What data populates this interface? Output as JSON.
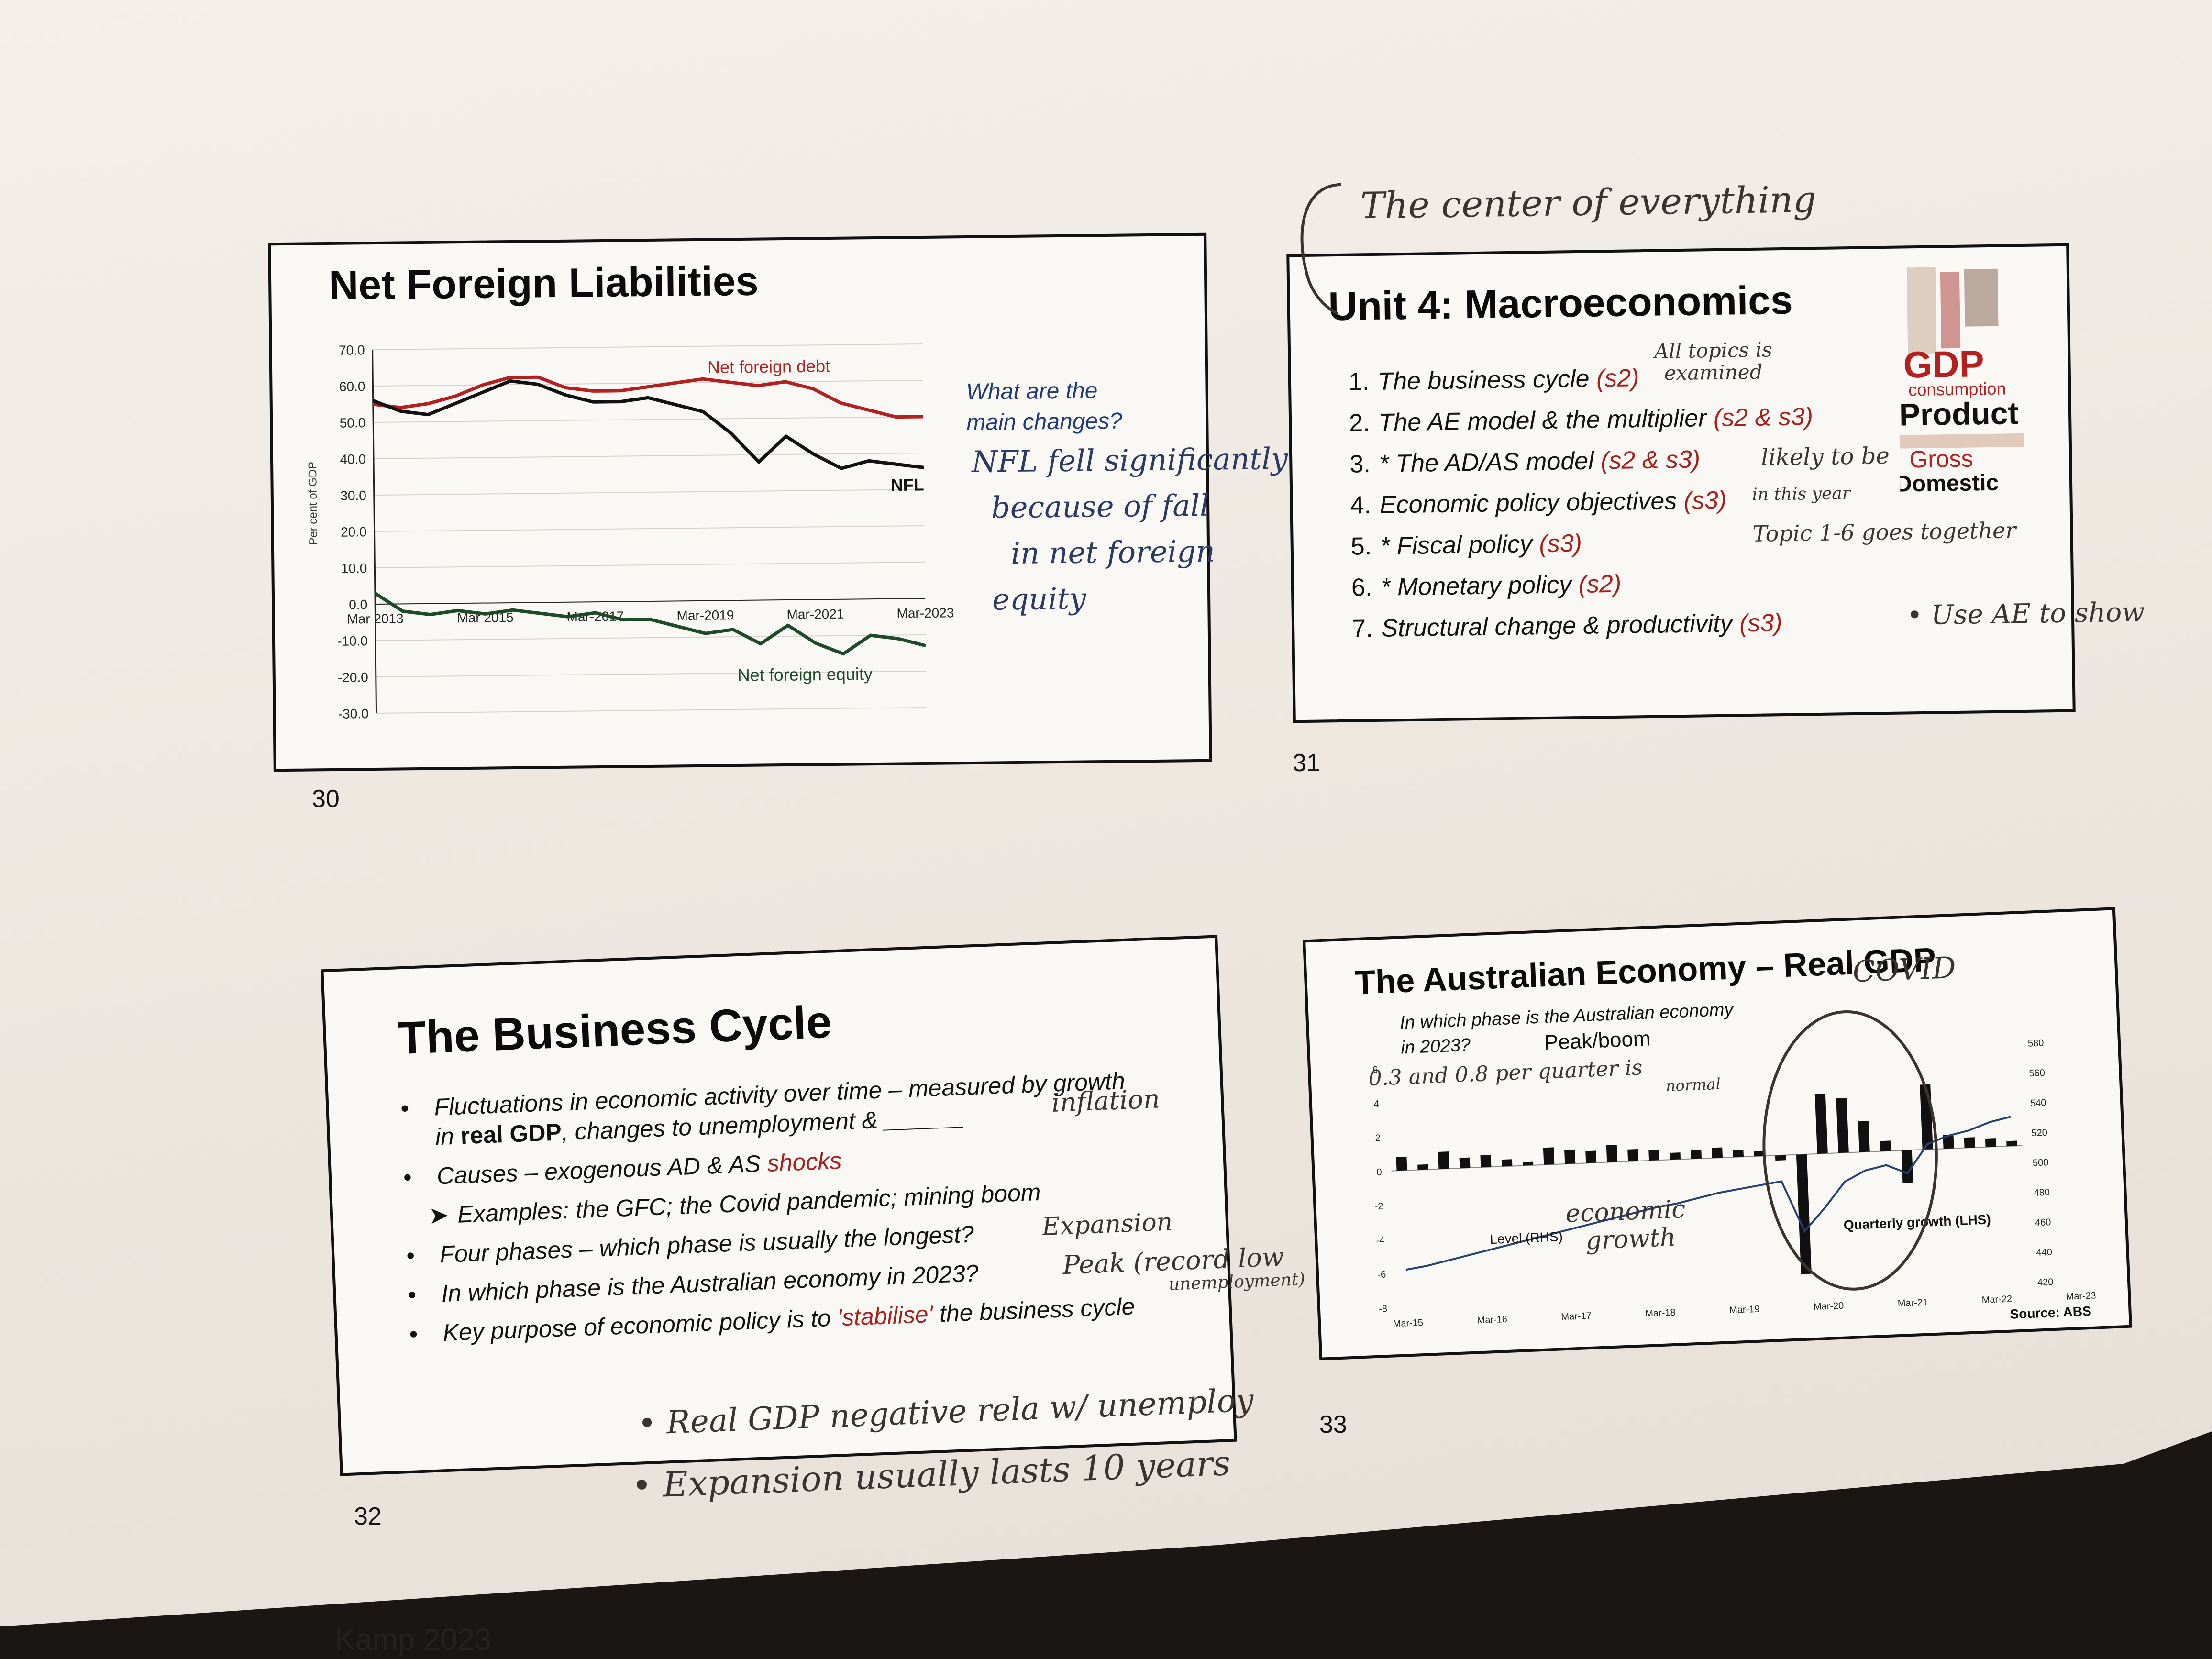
{
  "page_footer": "Kamp 2023",
  "slide30": {
    "number": "30",
    "title": "Net Foreign Liabilities",
    "question": [
      "What are the",
      "main changes?"
    ],
    "handwriting": [
      "NFL fell significantly",
      "because of fall",
      "in net foreign",
      "equity"
    ]
  },
  "slide31": {
    "number": "31",
    "title": "Unit 4: Macroeconomics",
    "items": [
      {
        "n": "1.",
        "text": "The business cycle",
        "tag": "(s2)"
      },
      {
        "n": "2.",
        "text": "The AE model & the multiplier",
        "tag": "(s2 & s3)"
      },
      {
        "n": "3.",
        "text": "* The AD/AS model",
        "tag": "(s2 & s3)"
      },
      {
        "n": "4.",
        "text": "Economic policy objectives",
        "tag": "(s3)"
      },
      {
        "n": "5.",
        "text": "* Fiscal policy",
        "tag": "(s3)"
      },
      {
        "n": "6.",
        "text": "* Monetary policy",
        "tag": "(s2)"
      },
      {
        "n": "7.",
        "text": "Structural change & productivity",
        "tag": "(s3)"
      }
    ],
    "wordcloud": [
      "GDP",
      "consumption",
      "Product",
      "Gross",
      "Domestic"
    ],
    "handwriting": {
      "top": "The center of everything",
      "topics1": "All topics is",
      "topics2": "examined",
      "likely": "likely to be",
      "year": "in this year",
      "together": "Topic 1-6 goes together",
      "ae": "• Use AE to show"
    }
  },
  "slide32": {
    "number": "32",
    "title": "The Business Cycle",
    "bullets": [
      {
        "pre": "Fluctuations in economic activity over time – measured by growth in ",
        "bold": "real GDP",
        "post": ", changes to unemployment & ______",
        "red": ""
      },
      {
        "pre": "Causes – exogenous AD & AS ",
        "bold": "",
        "post": "",
        "red": "shocks"
      },
      {
        "pre": "Examples: the GFC; the Covid pandemic; mining boom",
        "bold": "",
        "post": "",
        "red": "",
        "sub": true
      },
      {
        "pre": "Four phases – which phase is usually the longest?",
        "bold": "",
        "post": "",
        "red": ""
      },
      {
        "pre": "In which phase is the Australian economy in 2023?",
        "bold": "",
        "post": "",
        "red": ""
      },
      {
        "pre": "Key purpose of economic policy is to ",
        "bold": "",
        "post": " the business cycle",
        "red": "'stabilise'"
      }
    ],
    "handwriting": {
      "inflation": "inflation",
      "expansion": "Expansion",
      "peak": "Peak (record low",
      "unemp": "unemployment)",
      "note1": "• Real GDP negative rela w/ unemploy",
      "note2": "• Expansion usually lasts 10 years"
    }
  },
  "slide33": {
    "number": "33",
    "title": "The Australian Economy – Real GDP",
    "question": [
      "In which phase is the Australian economy",
      "in 2023?"
    ],
    "answer": "Peak/boom",
    "source": "Source: ABS",
    "label_level": "Level (RHS)",
    "label_growth": "Quarterly growth (LHS)",
    "handwriting": {
      "covid": "COVID",
      "normal1": "0.3 and 0.8 per quarter is",
      "normal2": "normal",
      "econ1": "economic",
      "econ2": "growth"
    }
  },
  "chart_data": [
    {
      "type": "line",
      "title": "",
      "ylabel": "Per cent of GDP",
      "ylim": [
        -30,
        70
      ],
      "yticks": [
        "70.0",
        "60.0",
        "50.0",
        "40.0",
        "30.0",
        "20.0",
        "10.0",
        "0.0",
        "-10.0",
        "-20.0",
        "-30.0"
      ],
      "x_ticks": [
        "Mar 2013",
        "Mar 2015",
        "Mar-2017",
        "Mar-2019",
        "Mar-2021",
        "Mar-2023"
      ],
      "x": [
        2013,
        2013.5,
        2014,
        2014.5,
        2015,
        2015.5,
        2016,
        2016.5,
        2017,
        2017.5,
        2018,
        2018.5,
        2019,
        2019.5,
        2020,
        2020.5,
        2021,
        2021.5,
        2022,
        2022.5,
        2023
      ],
      "series": [
        {
          "name": "Net foreign debt",
          "color": "#b3201f",
          "values": [
            55,
            54,
            55,
            57,
            60,
            62,
            62,
            59,
            58,
            58,
            59,
            60,
            61,
            60,
            59,
            60,
            58,
            54,
            52,
            50,
            50
          ]
        },
        {
          "name": "NFL",
          "color": "#111111",
          "values": [
            56,
            53,
            52,
            55,
            58,
            61,
            60,
            57,
            55,
            55,
            56,
            54,
            52,
            46,
            38,
            45,
            40,
            36,
            38,
            37,
            36
          ]
        },
        {
          "name": "Net foreign equity",
          "color": "#1f4a2a",
          "values": [
            3,
            -2,
            -3,
            -2,
            -3,
            -2,
            -3,
            -4,
            -3,
            -5,
            -5,
            -7,
            -9,
            -8,
            -12,
            -7,
            -12,
            -15,
            -10,
            -11,
            -13
          ]
        }
      ]
    },
    {
      "type": "bar",
      "title": "",
      "x_ticks": [
        "Mar-15",
        "Mar-16",
        "Mar-17",
        "Mar-18",
        "Mar-19",
        "Mar-20",
        "Mar-21",
        "Mar-22",
        "Mar-23"
      ],
      "ylim_left": [
        -8,
        6
      ],
      "yticks_left": [
        "6",
        "4",
        "2",
        "0",
        "-2",
        "-4",
        "-6",
        "-8"
      ],
      "ylim_right": [
        420,
        580
      ],
      "yticks_right": [
        "580",
        "560",
        "540",
        "520",
        "500",
        "480",
        "460",
        "440",
        "420"
      ],
      "series": [
        {
          "name": "Quarterly growth (LHS)",
          "color": "#111111",
          "values": [
            0.8,
            0.3,
            1.0,
            0.6,
            0.7,
            0.4,
            0.2,
            1.0,
            0.8,
            0.7,
            1.0,
            0.7,
            0.6,
            0.4,
            0.5,
            0.6,
            0.4,
            0.3,
            -0.3,
            -7.0,
            3.5,
            3.2,
            1.8,
            0.6,
            -1.9,
            3.8,
            0.8,
            0.6,
            0.5,
            0.3
          ]
        },
        {
          "name": "Level (RHS)",
          "color": "#26416e",
          "values": [
            445,
            447,
            450,
            453,
            456,
            459,
            462,
            465,
            468,
            471,
            474,
            477,
            480,
            482,
            485,
            488,
            490,
            492,
            494,
            460,
            475,
            492,
            499,
            502,
            496,
            515,
            520,
            523,
            528,
            531
          ]
        }
      ]
    }
  ]
}
